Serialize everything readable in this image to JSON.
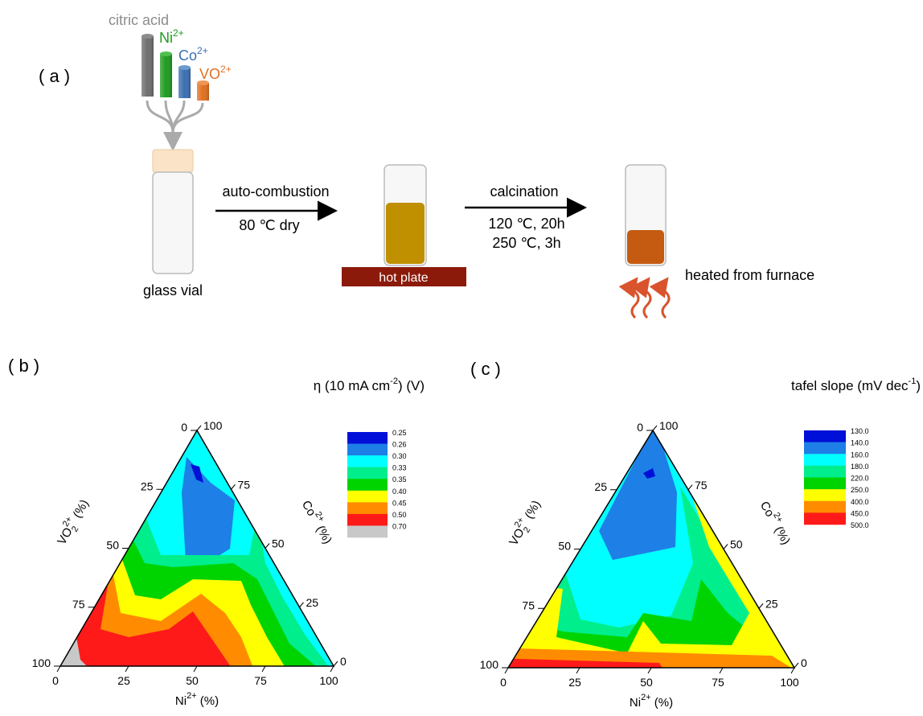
{
  "panel_a": {
    "label": "( a )",
    "reagents": [
      {
        "text": "citric acid"
      },
      {
        "text": "Ni",
        "sup": "2+"
      },
      {
        "text": "Co",
        "sup": "2+"
      },
      {
        "text": "VO",
        "sup": "2+"
      }
    ],
    "vial_label": "glass vial",
    "step1": {
      "label": "auto-combustion",
      "condition": "80 ℃ dry"
    },
    "hot_plate": "hot plate",
    "step2": {
      "label": "calcination",
      "conditions": [
        "120 ℃, 20h",
        "250 ℃, 3h"
      ]
    },
    "furnace_label": "heated from furnace"
  },
  "panel_b": {
    "label": "( b )",
    "colorbar": {
      "title": {
        "text": "η (10 mA cm",
        "sup": "-2",
        "tail": ") (V)"
      },
      "labels": [
        "0.25",
        "0.26",
        "0.30",
        "0.33",
        "0.35",
        "0.40",
        "0.45",
        "0.50",
        "0.70"
      ]
    },
    "axes": {
      "bottom": {
        "title": {
          "text": "Ni",
          "sup": "2+",
          "tail": " (%)"
        },
        "ticks": [
          0,
          25,
          50,
          75,
          100
        ]
      },
      "left": {
        "title": {
          "text": "VO",
          "sub": "2",
          "sup": "2+",
          "tail": " (%)"
        },
        "ticks": [
          0,
          25,
          50,
          75,
          100
        ]
      },
      "right": {
        "title": {
          "text": "Co",
          "sup": "2+",
          "tail": " (%)"
        },
        "ticks": [
          100,
          75,
          50,
          25,
          0
        ]
      }
    }
  },
  "panel_c": {
    "label": "( c )",
    "colorbar": {
      "title": {
        "text": "tafel slope (mV dec",
        "sup": "-1",
        "tail": ")"
      },
      "labels": [
        "130.0",
        "140.0",
        "160.0",
        "180.0",
        "220.0",
        "250.0",
        "400.0",
        "450.0",
        "500.0"
      ]
    },
    "axes": {
      "bottom": {
        "title": {
          "text": "Ni",
          "sup": "2+",
          "tail": " (%)"
        },
        "ticks": [
          0,
          25,
          50,
          75,
          100
        ]
      },
      "left": {
        "title": {
          "text": "VO",
          "sub": "2",
          "sup": "2+",
          "tail": " (%)"
        },
        "ticks": [
          0,
          25,
          50,
          75,
          100
        ]
      },
      "right": {
        "title": {
          "text": "Co",
          "sup": "2+",
          "tail": " (%)"
        },
        "ticks": [
          100,
          75,
          50,
          25,
          0
        ]
      }
    }
  }
}
